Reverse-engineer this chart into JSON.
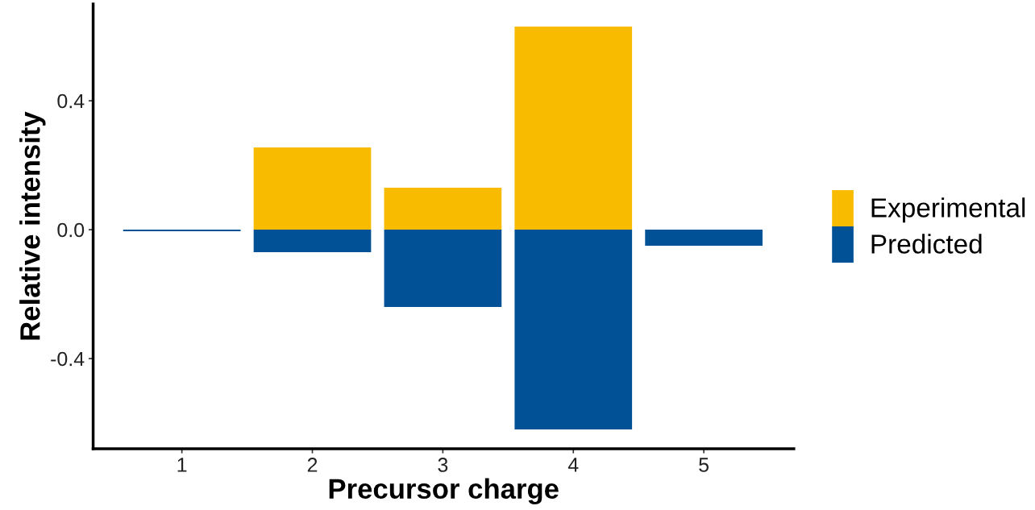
{
  "chart_data": {
    "type": "bar",
    "stacked": true,
    "xlabel": "Precursor charge",
    "ylabel": "Relative intensity",
    "categories": [
      "1",
      "2",
      "3",
      "4",
      "5"
    ],
    "series": [
      {
        "name": "Experimental",
        "color": "#f8bb00",
        "values": [
          null,
          0.255,
          0.13,
          0.63,
          null
        ]
      },
      {
        "name": "Predicted",
        "color": "#005195",
        "values": [
          -0.005,
          -0.07,
          -0.24,
          -0.62,
          -0.05
        ]
      }
    ],
    "ylim": [
      -0.68,
      0.7
    ],
    "yticks": [
      0.4,
      {
        "value": 0,
        "label": "0.0"
      },
      -0.4
    ],
    "grid": false,
    "legend": "right"
  }
}
